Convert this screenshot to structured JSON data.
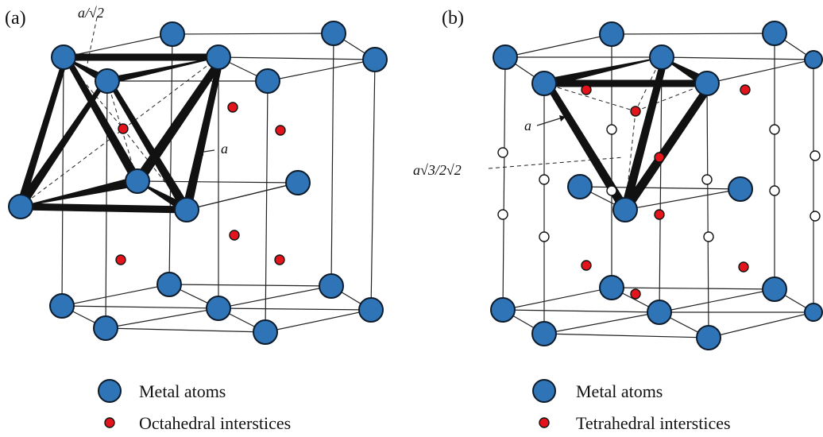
{
  "panel_a": {
    "label": "(a)",
    "annotation_top": "a/√2",
    "annotation_side": "a",
    "legend": [
      {
        "symbol": "metal",
        "text": "Metal atoms"
      },
      {
        "symbol": "red",
        "text": "Octahedral interstices"
      }
    ]
  },
  "panel_b": {
    "label": "(b)",
    "annotation_edge": "a",
    "annotation_height": "a√3/2√2",
    "legend": [
      {
        "symbol": "metal",
        "text": "Metal atoms"
      },
      {
        "symbol": "red",
        "text": "Tetrahedral interstices"
      }
    ]
  },
  "colors": {
    "metal_atom": "#2f74b7",
    "interstice": "#e3141b",
    "outline": "#111111"
  }
}
